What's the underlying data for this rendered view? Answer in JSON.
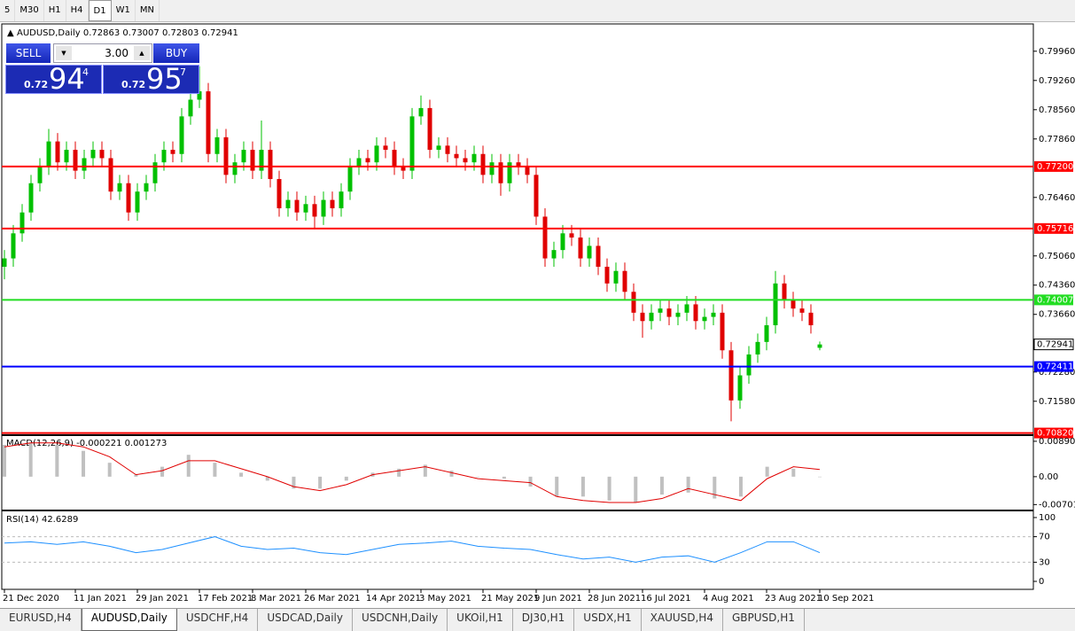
{
  "toolbar": {
    "timeframes": [
      "5",
      "M30",
      "H1",
      "H4",
      "D1",
      "W1",
      "MN"
    ],
    "active": 4
  },
  "trade_panel": {
    "sell": "SELL",
    "lot": "3.00",
    "buy": "BUY",
    "sell_prefix": "0.72",
    "sell_big": "94",
    "sell_sup": "4",
    "buy_prefix": "0.72",
    "buy_big": "95",
    "buy_sup": "7"
  },
  "chart_data": [
    {
      "type": "candlestick",
      "title": "AUDUSD,Daily  0.72863 0.73007 0.72803 0.72941",
      "up_color": "#00c000",
      "down_color": "#e00000",
      "categories": [
        "21 Dec 2020",
        null,
        null,
        null,
        null,
        null,
        null,
        null,
        "11 Jan 2021",
        null,
        null,
        null,
        null,
        null,
        null,
        "29 Jan 2021",
        null,
        null,
        null,
        null,
        null,
        null,
        "17 Feb 2021",
        null,
        null,
        null,
        null,
        null,
        "8 Mar 2021",
        null,
        null,
        null,
        null,
        null,
        "26 Mar 2021",
        null,
        null,
        null,
        null,
        null,
        null,
        "14 Apr 2021",
        null,
        null,
        null,
        null,
        null,
        "3 May 2021",
        null,
        null,
        null,
        null,
        null,
        null,
        "21 May 2021",
        null,
        null,
        null,
        null,
        null,
        "9 Jun 2021",
        null,
        null,
        null,
        null,
        null,
        "28 Jun 2021",
        null,
        null,
        null,
        null,
        null,
        "16 Jul 2021",
        null,
        null,
        null,
        null,
        null,
        null,
        "4 Aug 2021",
        null,
        null,
        null,
        null,
        null,
        null,
        "23 Aug 2021",
        null,
        null,
        null,
        null,
        null,
        "10 Sep 2021"
      ],
      "open": [
        0.748,
        0.75,
        0.756,
        0.761,
        0.768,
        0.772,
        0.778,
        0.773,
        0.776,
        0.771,
        0.774,
        0.776,
        0.774,
        0.766,
        0.768,
        0.761,
        0.766,
        0.768,
        0.773,
        0.776,
        0.775,
        0.784,
        0.788,
        0.79,
        0.775,
        0.779,
        0.77,
        0.773,
        0.776,
        0.771,
        0.776,
        0.769,
        0.762,
        0.764,
        0.761,
        0.763,
        0.76,
        0.764,
        0.762,
        0.766,
        0.772,
        0.774,
        0.773,
        0.777,
        0.776,
        0.772,
        0.771,
        0.784,
        0.786,
        0.776,
        0.777,
        0.775,
        0.774,
        0.773,
        0.775,
        0.77,
        0.773,
        0.768,
        0.773,
        0.772,
        0.77,
        0.76,
        0.75,
        0.752,
        0.756,
        0.755,
        0.75,
        0.753,
        0.748,
        0.744,
        0.747,
        0.742,
        0.737,
        0.735,
        0.737,
        0.738,
        0.736,
        0.737,
        0.739,
        0.735,
        0.736,
        0.737,
        0.728,
        0.716,
        0.722,
        0.727,
        0.73,
        0.734,
        0.744,
        0.74,
        0.738,
        0.737,
        0.7286
      ],
      "high": [
        0.752,
        0.758,
        0.763,
        0.77,
        0.774,
        0.781,
        0.78,
        0.778,
        0.778,
        0.776,
        0.778,
        0.778,
        0.776,
        0.77,
        0.77,
        0.768,
        0.77,
        0.775,
        0.778,
        0.778,
        0.786,
        0.79,
        0.796,
        0.792,
        0.781,
        0.781,
        0.775,
        0.778,
        0.778,
        0.783,
        0.778,
        0.771,
        0.766,
        0.766,
        0.765,
        0.765,
        0.766,
        0.766,
        0.768,
        0.774,
        0.776,
        0.776,
        0.779,
        0.779,
        0.778,
        0.774,
        0.786,
        0.789,
        0.788,
        0.779,
        0.779,
        0.777,
        0.776,
        0.777,
        0.777,
        0.775,
        0.775,
        0.775,
        0.775,
        0.774,
        0.772,
        0.762,
        0.754,
        0.758,
        0.758,
        0.757,
        0.755,
        0.755,
        0.75,
        0.749,
        0.749,
        0.744,
        0.739,
        0.739,
        0.74,
        0.74,
        0.739,
        0.741,
        0.741,
        0.738,
        0.739,
        0.739,
        0.73,
        0.724,
        0.729,
        0.732,
        0.736,
        0.747,
        0.746,
        0.742,
        0.74,
        0.739,
        0.7301
      ],
      "low": [
        0.745,
        0.748,
        0.754,
        0.759,
        0.766,
        0.77,
        0.771,
        0.771,
        0.769,
        0.769,
        0.772,
        0.772,
        0.764,
        0.764,
        0.759,
        0.759,
        0.764,
        0.766,
        0.771,
        0.773,
        0.773,
        0.782,
        0.786,
        0.773,
        0.773,
        0.768,
        0.768,
        0.771,
        0.769,
        0.769,
        0.767,
        0.76,
        0.76,
        0.759,
        0.759,
        0.757,
        0.758,
        0.76,
        0.76,
        0.764,
        0.77,
        0.771,
        0.771,
        0.774,
        0.77,
        0.769,
        0.769,
        0.782,
        0.774,
        0.774,
        0.773,
        0.772,
        0.771,
        0.771,
        0.768,
        0.768,
        0.765,
        0.766,
        0.77,
        0.768,
        0.758,
        0.748,
        0.748,
        0.75,
        0.753,
        0.748,
        0.748,
        0.746,
        0.742,
        0.742,
        0.74,
        0.735,
        0.731,
        0.733,
        0.735,
        0.734,
        0.734,
        0.735,
        0.733,
        0.733,
        0.734,
        0.726,
        0.711,
        0.714,
        0.72,
        0.725,
        0.728,
        0.732,
        0.738,
        0.736,
        0.735,
        0.732,
        0.728
      ],
      "close": [
        0.75,
        0.756,
        0.761,
        0.768,
        0.772,
        0.778,
        0.773,
        0.776,
        0.771,
        0.774,
        0.776,
        0.774,
        0.766,
        0.768,
        0.761,
        0.766,
        0.768,
        0.773,
        0.776,
        0.775,
        0.784,
        0.788,
        0.79,
        0.775,
        0.779,
        0.77,
        0.773,
        0.776,
        0.771,
        0.776,
        0.769,
        0.762,
        0.764,
        0.761,
        0.763,
        0.76,
        0.764,
        0.762,
        0.766,
        0.772,
        0.774,
        0.773,
        0.777,
        0.776,
        0.772,
        0.771,
        0.784,
        0.786,
        0.776,
        0.777,
        0.775,
        0.774,
        0.773,
        0.775,
        0.77,
        0.773,
        0.768,
        0.773,
        0.772,
        0.77,
        0.76,
        0.75,
        0.752,
        0.756,
        0.755,
        0.75,
        0.753,
        0.748,
        0.744,
        0.747,
        0.742,
        0.737,
        0.735,
        0.737,
        0.738,
        0.736,
        0.737,
        0.739,
        0.735,
        0.736,
        0.737,
        0.728,
        0.716,
        0.722,
        0.727,
        0.73,
        0.734,
        0.744,
        0.74,
        0.738,
        0.737,
        0.734,
        0.7294
      ],
      "ylim": [
        0.7079,
        0.8055
      ],
      "yticks": [
        {
          "value": 0.7996,
          "label": "0.79960"
        },
        {
          "value": 0.7926,
          "label": "0.79260"
        },
        {
          "value": 0.7856,
          "label": "0.78560"
        },
        {
          "value": 0.7786,
          "label": "0.77860"
        },
        {
          "value": 0.7646,
          "label": "0.76460"
        },
        {
          "value": 0.7506,
          "label": "0.75060"
        },
        {
          "value": 0.7436,
          "label": "0.74360"
        },
        {
          "value": 0.7366,
          "label": "0.73660"
        },
        {
          "value": 0.7228,
          "label": "0.72280"
        },
        {
          "value": 0.7158,
          "label": "0.71580"
        }
      ],
      "levels": [
        {
          "value": 0.772,
          "label": "0.77200",
          "color": "#ff0000"
        },
        {
          "value": 0.75716,
          "color": "#ff0000"
        },
        {
          "value": 0.74007,
          "color": "#22dd22"
        },
        {
          "value": 0.72411,
          "color": "#0000ff"
        },
        {
          "value": 0.7082,
          "label": "0.70820",
          "color": "#ff0000"
        }
      ],
      "current": 0.72941
    },
    {
      "type": "macd",
      "title": "MACD(12,26,9) -0.000221 0.001273",
      "color": "#c0c0c0",
      "signal_color": "#e00000",
      "values": [
        0.008,
        0.0085,
        0.008,
        0.0065,
        0.0035,
        0.0005,
        0.0025,
        0.0055,
        0.0035,
        0.001,
        -0.001,
        -0.003,
        -0.003,
        -0.001,
        0.001,
        0.002,
        0.003,
        0.0015,
        0.0,
        -0.0005,
        -0.0025,
        -0.005,
        -0.005,
        -0.006,
        -0.0065,
        -0.0045,
        -0.004,
        -0.0055,
        -0.005,
        0.0025,
        0.002,
        0.0
      ],
      "signal": [
        0.0075,
        0.0085,
        0.0085,
        0.0075,
        0.005,
        0.0005,
        0.0015,
        0.004,
        0.004,
        0.002,
        0.0,
        -0.0025,
        -0.0035,
        -0.002,
        0.0005,
        0.0015,
        0.0025,
        0.001,
        -0.0005,
        -0.001,
        -0.0015,
        -0.005,
        -0.006,
        -0.0065,
        -0.0065,
        -0.0055,
        -0.003,
        -0.0045,
        -0.006,
        -0.0005,
        0.0025,
        0.0018
      ],
      "ylim": [
        -0.0085,
        0.01
      ],
      "yticks": [
        0.008904,
        {
          "value": 0,
          "label": "0.00"
        },
        -0.007013
      ]
    },
    {
      "type": "line",
      "title": "RSI(14) 42.6289",
      "color": "#1e90ff",
      "values": [
        60,
        62,
        58,
        62,
        55,
        45,
        50,
        60,
        70,
        55,
        50,
        52,
        45,
        42,
        50,
        58,
        60,
        63,
        55,
        52,
        50,
        42,
        35,
        38,
        30,
        38,
        40,
        30,
        45,
        62,
        62,
        45
      ],
      "ylim": [
        -12.5,
        108.3
      ],
      "yticks": [
        100,
        70,
        30,
        0
      ],
      "levels": [
        70,
        30
      ]
    }
  ],
  "tabs": [
    "EURUSD,H4",
    "AUDUSD,Daily",
    "USDCHF,H4",
    "USDCAD,Daily",
    "USDCNH,Daily",
    "UKOil,H1",
    "DJ30,H1",
    "USDX,H1",
    "XAUUSD,H4",
    "GBPUSD,H1"
  ],
  "active_tab": 1
}
